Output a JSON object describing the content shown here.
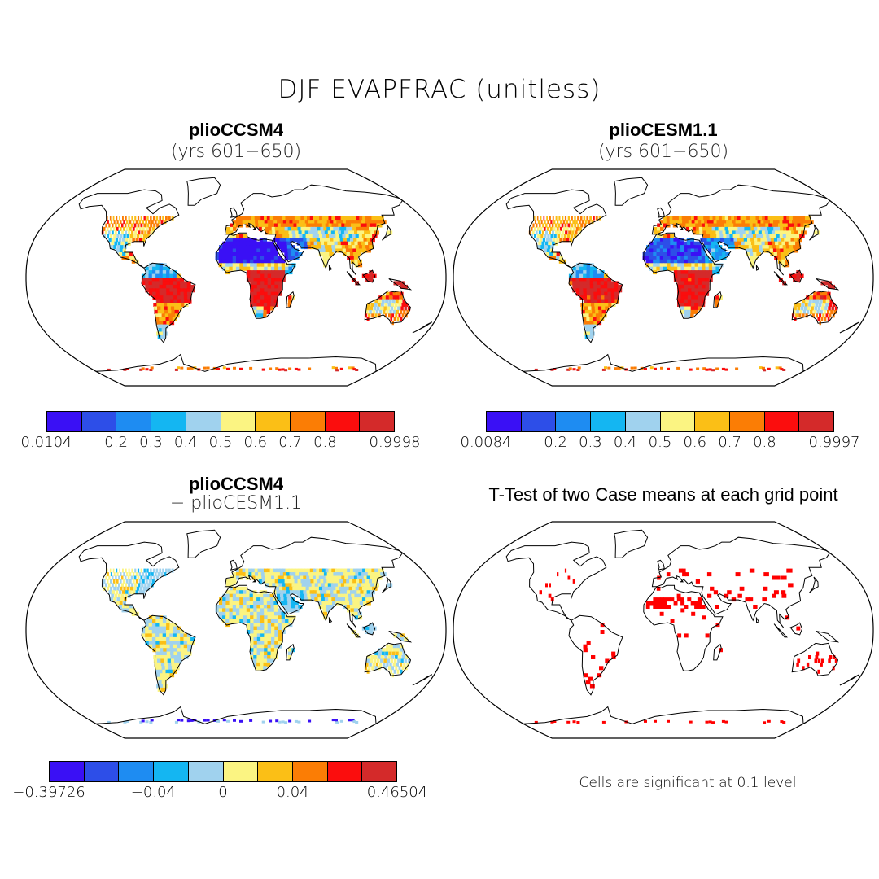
{
  "figure": {
    "title": "DJF EVAPFRAC (unitless)"
  },
  "panels": {
    "top_left": {
      "title": "plioCCSM4",
      "subtitle": "(yrs 601−650)",
      "field": "evapfrac-plioCCSM4"
    },
    "top_right": {
      "title": "plioCESM1.1",
      "subtitle": "(yrs 601−650)",
      "field": "evapfrac-plioCESM1.1"
    },
    "bottom_left": {
      "title": "plioCCSM4",
      "subtitle": "− plioCESM1.1",
      "field": "difference"
    },
    "bottom_right": {
      "title": "T-Test of two Case means at each grid point",
      "note": "Cells are significant at 0.1 level",
      "field": "significance",
      "significant_color": "#ff0000"
    }
  },
  "colorbars": {
    "palette": [
      "#3a10f5",
      "#2d4ee8",
      "#1e8cf2",
      "#14b6f2",
      "#a0d2ee",
      "#fbf482",
      "#fbbf16",
      "#fb7d05",
      "#fb0d0d",
      "#d42a2a"
    ],
    "top_left": {
      "labels": [
        "0.0104",
        "0.2",
        "0.3",
        "0.4",
        "0.5",
        "0.6",
        "0.7",
        "0.8",
        "0.9998"
      ],
      "boundary_index": [
        0,
        2,
        3,
        4,
        5,
        6,
        7,
        8,
        10
      ]
    },
    "top_right": {
      "labels": [
        "0.0084",
        "0.2",
        "0.3",
        "0.4",
        "0.5",
        "0.6",
        "0.7",
        "0.8",
        "0.9997"
      ],
      "boundary_index": [
        0,
        2,
        3,
        4,
        5,
        6,
        7,
        8,
        10
      ]
    },
    "bottom_left": {
      "labels": [
        "−0.39726",
        "−0.04",
        "0",
        "0.04",
        "0.46504"
      ],
      "boundary_index": [
        0,
        3,
        5,
        7,
        10
      ]
    }
  }
}
